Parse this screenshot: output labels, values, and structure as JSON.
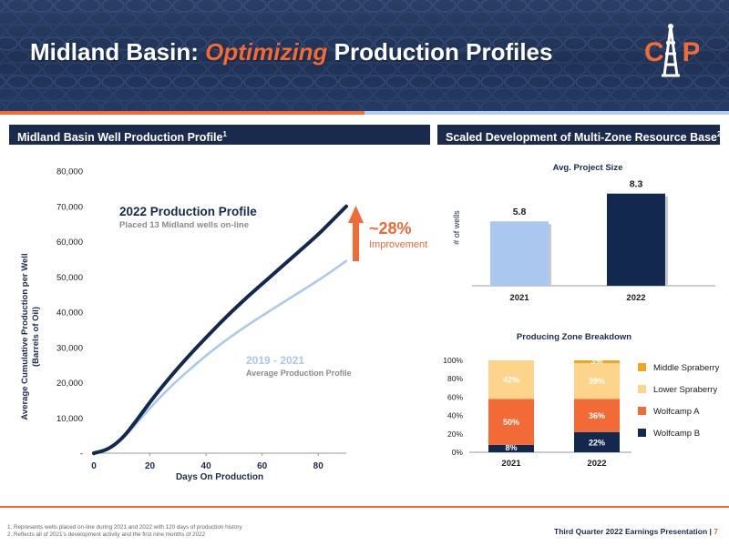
{
  "slide": {
    "title_part1": "Midland Basin: ",
    "title_accent": "Optimizing",
    "title_part2": " Production Profiles",
    "logo_letters": "CP",
    "left_section_title": "Midland Basin Well Production Profile",
    "left_section_sup": "1",
    "right_section_title": "Scaled Development of Multi-Zone Resource Base",
    "right_section_sup": "2"
  },
  "annotations": {
    "profile_2022_title": "2022 Production Profile",
    "profile_2022_sub": "Placed 13 Midland wells on-line",
    "improvement_pct": "~28%",
    "improvement_label": "Improvement",
    "profile_2019_title": "2019 - 2021",
    "profile_2019_sub": "Average Production Profile"
  },
  "colors": {
    "navy": "#13284f",
    "orange": "#f26a36",
    "light_blue": "#a9c7ef",
    "tan": "#fcd48b",
    "gold": "#f0a51f"
  },
  "chart_data": [
    {
      "type": "line",
      "xlabel": "Days On Production",
      "ylabel_line1": "Average Cumulative Production per Well",
      "ylabel_line2": "(Barrels of Oil)",
      "xlim": [
        0,
        90
      ],
      "ylim": [
        0,
        80000
      ],
      "x_ticks": [
        0,
        20,
        40,
        60,
        80
      ],
      "y_ticks": [
        0,
        10000,
        20000,
        30000,
        40000,
        50000,
        60000,
        70000,
        80000
      ],
      "y_tick_labels": [
        "-",
        "10,000",
        "20,000",
        "30,000",
        "40,000",
        "50,000",
        "60,000",
        "70,000",
        "80,000"
      ],
      "series": [
        {
          "name": "2022 Production Profile",
          "color": "#13284f",
          "x": [
            0,
            5,
            10,
            15,
            20,
            25,
            30,
            35,
            40,
            45,
            50,
            55,
            60,
            65,
            70,
            75,
            80,
            85,
            90
          ],
          "y": [
            0,
            1000,
            4000,
            9000,
            14500,
            19500,
            24200,
            28600,
            32800,
            36900,
            40800,
            44500,
            48000,
            51500,
            55000,
            58500,
            62000,
            66000,
            70000
          ]
        },
        {
          "name": "2019 - 2021 Average Production Profile",
          "color": "#a9c7ef",
          "x": [
            0,
            5,
            10,
            15,
            20,
            25,
            30,
            35,
            40,
            45,
            50,
            55,
            60,
            65,
            70,
            75,
            80,
            85,
            90
          ],
          "y": [
            0,
            1000,
            3800,
            8200,
            12800,
            17000,
            20800,
            24300,
            27700,
            30800,
            33700,
            36400,
            39000,
            41500,
            44000,
            46500,
            49000,
            51700,
            54500
          ]
        }
      ]
    },
    {
      "type": "bar",
      "title": "Avg. Project Size",
      "ylabel": "# of wells",
      "categories": [
        "2021",
        "2022"
      ],
      "values": [
        5.8,
        8.3
      ],
      "value_labels": [
        "5.8",
        "8.3"
      ],
      "colors": [
        "#a9c7ef",
        "#13284f"
      ],
      "ylim": [
        0,
        10
      ]
    },
    {
      "type": "bar",
      "stacked": true,
      "title": "Producing Zone Breakdown",
      "categories": [
        "2021",
        "2022"
      ],
      "y_ticks": [
        "0%",
        "20%",
        "40%",
        "60%",
        "80%",
        "100%"
      ],
      "ylim": [
        0,
        100
      ],
      "legend_position": "right",
      "series": [
        {
          "name": "Wolfcamp B",
          "color": "#13284f",
          "values": [
            8,
            22
          ],
          "labels": [
            "8%",
            "22%"
          ]
        },
        {
          "name": "Wolfcamp A",
          "color": "#f26a36",
          "values": [
            50,
            36
          ],
          "labels": [
            "50%",
            "36%"
          ]
        },
        {
          "name": "Lower Spraberry",
          "color": "#fcd48b",
          "values": [
            42,
            39
          ],
          "labels": [
            "42%",
            "39%"
          ]
        },
        {
          "name": "Middle Spraberry",
          "color": "#f0a51f",
          "values": [
            0,
            3
          ],
          "labels": [
            "",
            "3%"
          ]
        }
      ],
      "legend_order": [
        "Middle Spraberry",
        "Lower Spraberry",
        "Wolfcamp A",
        "Wolfcamp B"
      ]
    }
  ],
  "footer": {
    "footnote_1": "1.  Represents wells placed on-line during 2021 and 2022 with 120 days of production history",
    "footnote_2": "2.  Reflects all of 2021's development activity and the first nine months of 2022",
    "presentation": "Third Quarter 2022 Earnings Presentation | ",
    "page": "7"
  }
}
